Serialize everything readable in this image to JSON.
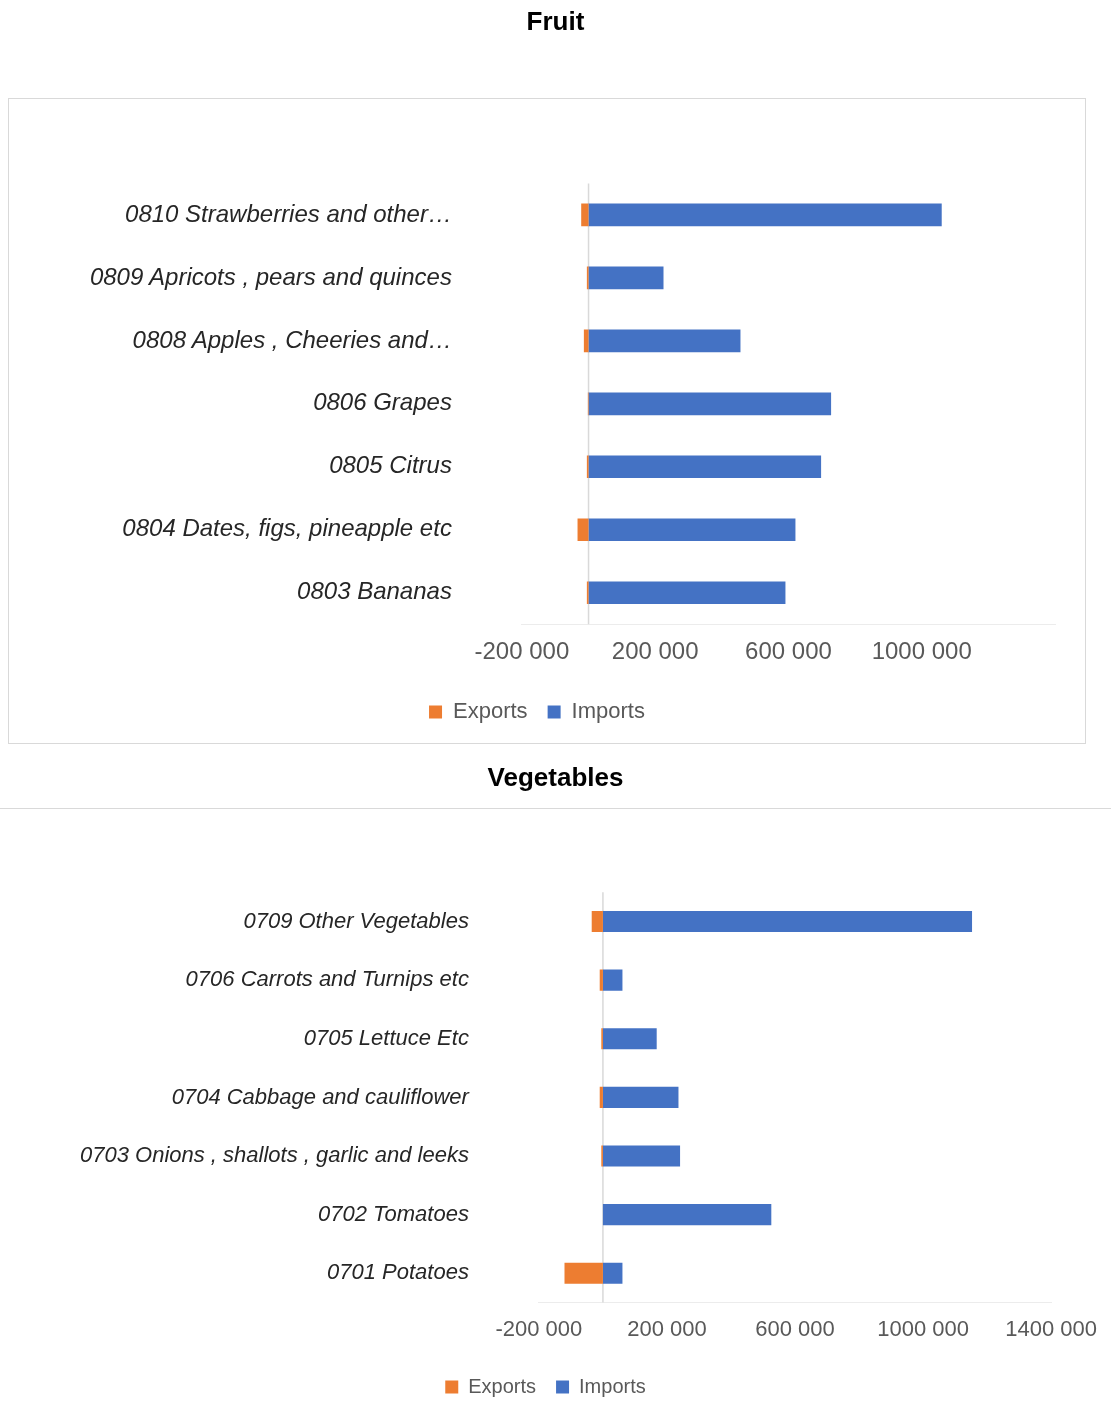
{
  "chart_data": [
    {
      "type": "bar",
      "title": "Fruit",
      "orientation": "horizontal",
      "stacked": true,
      "grid": false,
      "legend": "bottom",
      "categories": [
        "0810 Strawberries and other…",
        "0809 Apricots , pears and quinces",
        "0808 Apples , Cheeries and…",
        "0806 Grapes",
        "0805 Citrus",
        "0804 Dates, figs, pineapple etc",
        "0803 Bananas"
      ],
      "series": [
        {
          "name": "Exports",
          "color": "#ed7d31",
          "values": [
            -22000,
            -5000,
            -14000,
            -2000,
            -5000,
            -33000,
            -5000
          ]
        },
        {
          "name": "Imports",
          "color": "#4472c4",
          "values": [
            1060000,
            225000,
            456000,
            728000,
            698000,
            621000,
            591000
          ]
        }
      ],
      "xlim": [
        -200000,
        1400000
      ],
      "xticks": [
        {
          "value": -200000,
          "label": "-200 000"
        },
        {
          "value": 200000,
          "label": "200 000"
        },
        {
          "value": 600000,
          "label": "600 000"
        },
        {
          "value": 1000000,
          "label": "1000 000"
        }
      ]
    },
    {
      "type": "bar",
      "title": "Vegetables",
      "orientation": "horizontal",
      "stacked": true,
      "grid": false,
      "legend": "bottom",
      "categories": [
        "0709 Other Vegetables",
        "0706 Carrots and Turnips etc",
        "0705 Lettuce Etc",
        "0704 Cabbage and cauliflower",
        "0703 Onions , shallots , garlic and leeks",
        "0702 Tomatoes",
        "0701 Potatoes"
      ],
      "series": [
        {
          "name": "Exports",
          "color": "#ed7d31",
          "values": [
            -35000,
            -10000,
            -5000,
            -10000,
            -5000,
            0,
            -120000
          ]
        },
        {
          "name": "Imports",
          "color": "#4472c4",
          "values": [
            1153000,
            61000,
            168000,
            236000,
            241000,
            526000,
            61000
          ]
        }
      ],
      "xlim": [
        -200000,
        1400000
      ],
      "xticks": [
        {
          "value": -200000,
          "label": "-200 000"
        },
        {
          "value": 200000,
          "label": "200 000"
        },
        {
          "value": 600000,
          "label": "600 000"
        },
        {
          "value": 1000000,
          "label": "1000 000"
        },
        {
          "value": 1400000,
          "label": "1400 000"
        }
      ]
    }
  ]
}
